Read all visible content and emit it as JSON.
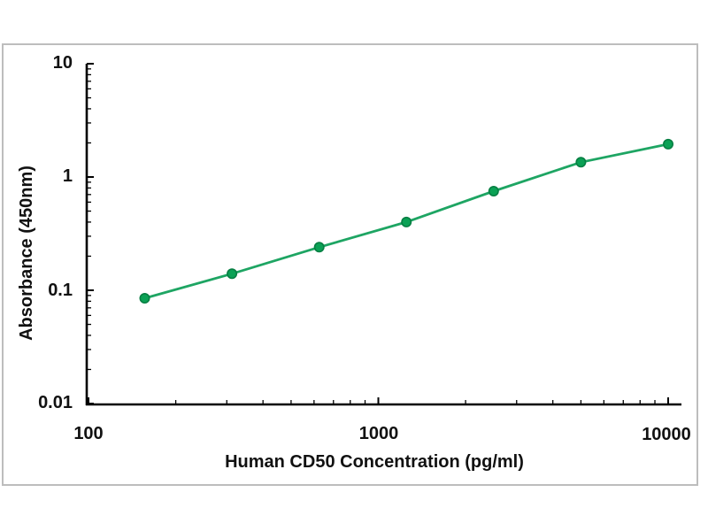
{
  "chart_data": {
    "type": "line",
    "title": "",
    "xlabel": "Human CD50 Concentration (pg/ml)",
    "ylabel": "Absorbance (450nm)",
    "x_scale": "log",
    "y_scale": "log",
    "xlim": [
      100,
      10000
    ],
    "ylim": [
      0.01,
      10
    ],
    "grid": false,
    "legend_position": "none",
    "x_ticks": [
      {
        "label": "100",
        "value": 100
      },
      {
        "label": "1000",
        "value": 1000
      },
      {
        "label": "10000",
        "value": 10000
      }
    ],
    "y_ticks": [
      {
        "label": "10",
        "value": 10
      },
      {
        "label": "1",
        "value": 1
      },
      {
        "label": "0.1",
        "value": 0.1
      },
      {
        "label": "0.01",
        "value": 0.01
      }
    ],
    "points": [
      {
        "x": 156.25,
        "y": 0.085
      },
      {
        "x": 312.5,
        "y": 0.14
      },
      {
        "x": 625,
        "y": 0.24
      },
      {
        "x": 1250,
        "y": 0.4
      },
      {
        "x": 2500,
        "y": 0.75
      },
      {
        "x": 5000,
        "y": 1.35
      },
      {
        "x": 10000,
        "y": 1.95
      }
    ],
    "colors": {
      "line": "#1ea563",
      "marker": "#0ba155",
      "marker_edge": "#077f43",
      "axis": "#000000",
      "frame_border": "#bdbdbd",
      "text": "#111111"
    }
  }
}
